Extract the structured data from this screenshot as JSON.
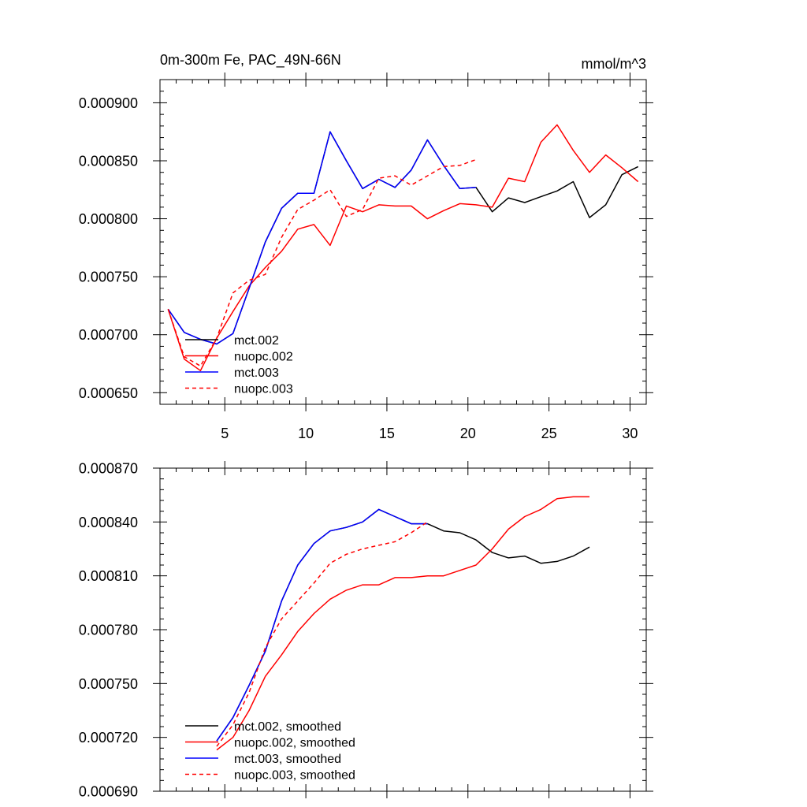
{
  "chart_data": [
    {
      "type": "line",
      "title": "0m-300m Fe, PAC_49N-66N",
      "units": "mmol/m^3",
      "xlabel": "",
      "ylabel": "",
      "xlim": [
        1,
        31
      ],
      "ylim": [
        0.00064,
        0.00092
      ],
      "xticks": [
        5,
        10,
        15,
        20,
        25,
        30
      ],
      "xtick_labels": [
        "5",
        "10",
        "15",
        "20",
        "25",
        "30"
      ],
      "yticks": [
        0.00065,
        0.0007,
        0.00075,
        0.0008,
        0.00085,
        0.0009
      ],
      "ytick_labels": [
        "0.000650",
        "0.000700",
        "0.000750",
        "0.000800",
        "0.000850",
        "0.000900"
      ],
      "grid": false,
      "legend_placement": "bottom-left",
      "series": [
        {
          "name": "mct.002",
          "color": "#000000",
          "dash": "solid",
          "x": [
            1.5,
            2.5,
            3.5,
            4.5,
            5.5,
            6.5,
            7.5,
            8.5,
            9.5,
            10.5,
            11.5,
            12.5,
            13.5,
            14.5,
            15.5,
            16.5,
            17.5,
            18.5,
            19.5,
            20.5,
            21.5,
            22.5,
            23.5,
            24.5,
            25.5,
            26.5,
            27.5,
            28.5,
            29.5,
            30.5
          ],
          "y": [
            0.000722,
            0.000702,
            0.000696,
            0.000692,
            0.000701,
            0.00074,
            0.00078,
            0.000809,
            0.000822,
            0.000822,
            0.000875,
            0.00085,
            0.000826,
            0.000834,
            0.000827,
            0.000842,
            0.000868,
            0.000846,
            0.000826,
            0.000827,
            0.000806,
            0.000818,
            0.000814,
            0.000819,
            0.000824,
            0.000832,
            0.000801,
            0.000812,
            0.000838,
            0.000845
          ]
        },
        {
          "name": "nuopc.002",
          "color": "#ff0000",
          "dash": "solid",
          "x": [
            1.5,
            2.5,
            3.5,
            4.5,
            5.5,
            6.5,
            7.5,
            8.5,
            9.5,
            10.5,
            11.5,
            12.5,
            13.5,
            14.5,
            15.5,
            16.5,
            17.5,
            18.5,
            19.5,
            20.5,
            21.5,
            22.5,
            23.5,
            24.5,
            25.5,
            26.5,
            27.5,
            28.5,
            29.5,
            30.5
          ],
          "y": [
            0.000722,
            0.000679,
            0.000669,
            0.000697,
            0.00072,
            0.000742,
            0.000758,
            0.000772,
            0.000791,
            0.000795,
            0.000777,
            0.000811,
            0.000806,
            0.000812,
            0.000811,
            0.000811,
            0.0008,
            0.000807,
            0.000813,
            0.000812,
            0.00081,
            0.000835,
            0.000832,
            0.000866,
            0.000881,
            0.000859,
            0.00084,
            0.000855,
            0.000844,
            0.000832
          ]
        },
        {
          "name": "mct.003",
          "color": "#0000ff",
          "dash": "solid",
          "x": [
            1.5,
            2.5,
            3.5,
            4.5,
            5.5,
            6.5,
            7.5,
            8.5,
            9.5,
            10.5,
            11.5,
            12.5,
            13.5,
            14.5,
            15.5,
            16.5,
            17.5,
            18.5,
            19.5,
            20.5
          ],
          "y": [
            0.000722,
            0.000702,
            0.000696,
            0.000692,
            0.000701,
            0.00074,
            0.00078,
            0.000809,
            0.000822,
            0.000822,
            0.000875,
            0.00085,
            0.000826,
            0.000834,
            0.000827,
            0.000842,
            0.000868,
            0.000846,
            0.000826,
            0.000827
          ]
        },
        {
          "name": "nuopc.003",
          "color": "#ff0000",
          "dash": "dashed",
          "x": [
            1.5,
            2.5,
            3.5,
            4.5,
            5.5,
            6.5,
            7.5,
            8.5,
            9.5,
            10.5,
            11.5,
            12.5,
            13.5,
            14.5,
            15.5,
            16.5,
            17.5,
            18.5,
            19.5,
            20.5
          ],
          "y": [
            0.000722,
            0.000681,
            0.000673,
            0.000697,
            0.000736,
            0.000747,
            0.000752,
            0.000784,
            0.000808,
            0.000816,
            0.000825,
            0.000802,
            0.000808,
            0.000835,
            0.000837,
            0.000829,
            0.000837,
            0.000845,
            0.000846,
            0.000851
          ]
        }
      ]
    },
    {
      "type": "line",
      "title": "",
      "xlabel": "",
      "ylabel": "",
      "xlim": [
        1,
        31
      ],
      "ylim": [
        0.00069,
        0.00087
      ],
      "xticks": [
        5,
        10,
        15,
        20,
        25,
        30
      ],
      "xtick_labels": [],
      "yticks": [
        0.00069,
        0.00072,
        0.00075,
        0.00078,
        0.00081,
        0.00084,
        0.00087
      ],
      "ytick_labels": [
        "0.000690",
        "0.000720",
        "0.000750",
        "0.000780",
        "0.000810",
        "0.000840",
        "0.000870"
      ],
      "grid": false,
      "legend_placement": "bottom-left",
      "series": [
        {
          "name": "mct.002, smoothed",
          "color": "#000000",
          "dash": "solid",
          "x": [
            4.5,
            5.5,
            6.5,
            7.5,
            8.5,
            9.5,
            10.5,
            11.5,
            12.5,
            13.5,
            14.5,
            15.5,
            16.5,
            17.5,
            18.5,
            19.5,
            20.5,
            21.5,
            22.5,
            23.5,
            24.5,
            25.5,
            26.5,
            27.5
          ],
          "y": [
            0.000718,
            0.000731,
            0.000749,
            0.000768,
            0.000796,
            0.000816,
            0.000828,
            0.000835,
            0.000837,
            0.00084,
            0.000847,
            0.000843,
            0.000839,
            0.000839,
            0.000835,
            0.000834,
            0.00083,
            0.000823,
            0.00082,
            0.000821,
            0.000817,
            0.000818,
            0.000821,
            0.000826
          ]
        },
        {
          "name": "nuopc.002, smoothed",
          "color": "#ff0000",
          "dash": "solid",
          "x": [
            4.5,
            5.5,
            6.5,
            7.5,
            8.5,
            9.5,
            10.5,
            11.5,
            12.5,
            13.5,
            14.5,
            15.5,
            16.5,
            17.5,
            18.5,
            19.5,
            20.5,
            21.5,
            22.5,
            23.5,
            24.5,
            25.5,
            26.5,
            27.5
          ],
          "y": [
            0.000713,
            0.00072,
            0.000735,
            0.000754,
            0.000766,
            0.000779,
            0.000789,
            0.000797,
            0.000802,
            0.000805,
            0.000805,
            0.000809,
            0.000809,
            0.00081,
            0.00081,
            0.000813,
            0.000816,
            0.000825,
            0.000836,
            0.000843,
            0.000847,
            0.000853,
            0.000854,
            0.000854
          ]
        },
        {
          "name": "mct.003, smoothed",
          "color": "#0000ff",
          "dash": "solid",
          "x": [
            4.5,
            5.5,
            6.5,
            7.5,
            8.5,
            9.5,
            10.5,
            11.5,
            12.5,
            13.5,
            14.5,
            15.5,
            16.5,
            17.5
          ],
          "y": [
            0.000718,
            0.000731,
            0.000749,
            0.000768,
            0.000796,
            0.000816,
            0.000828,
            0.000835,
            0.000837,
            0.00084,
            0.000847,
            0.000843,
            0.000839,
            0.000839
          ]
        },
        {
          "name": "nuopc.003, smoothed",
          "color": "#ff0000",
          "dash": "dashed",
          "x": [
            4.5,
            5.5,
            6.5,
            7.5,
            8.5,
            9.5,
            10.5,
            11.5,
            12.5,
            13.5,
            14.5,
            15.5,
            16.5,
            17.5
          ],
          "y": [
            0.000715,
            0.000727,
            0.000745,
            0.00077,
            0.000786,
            0.000796,
            0.000806,
            0.000817,
            0.000822,
            0.000825,
            0.000827,
            0.000829,
            0.000834,
            0.00084
          ]
        }
      ]
    }
  ]
}
